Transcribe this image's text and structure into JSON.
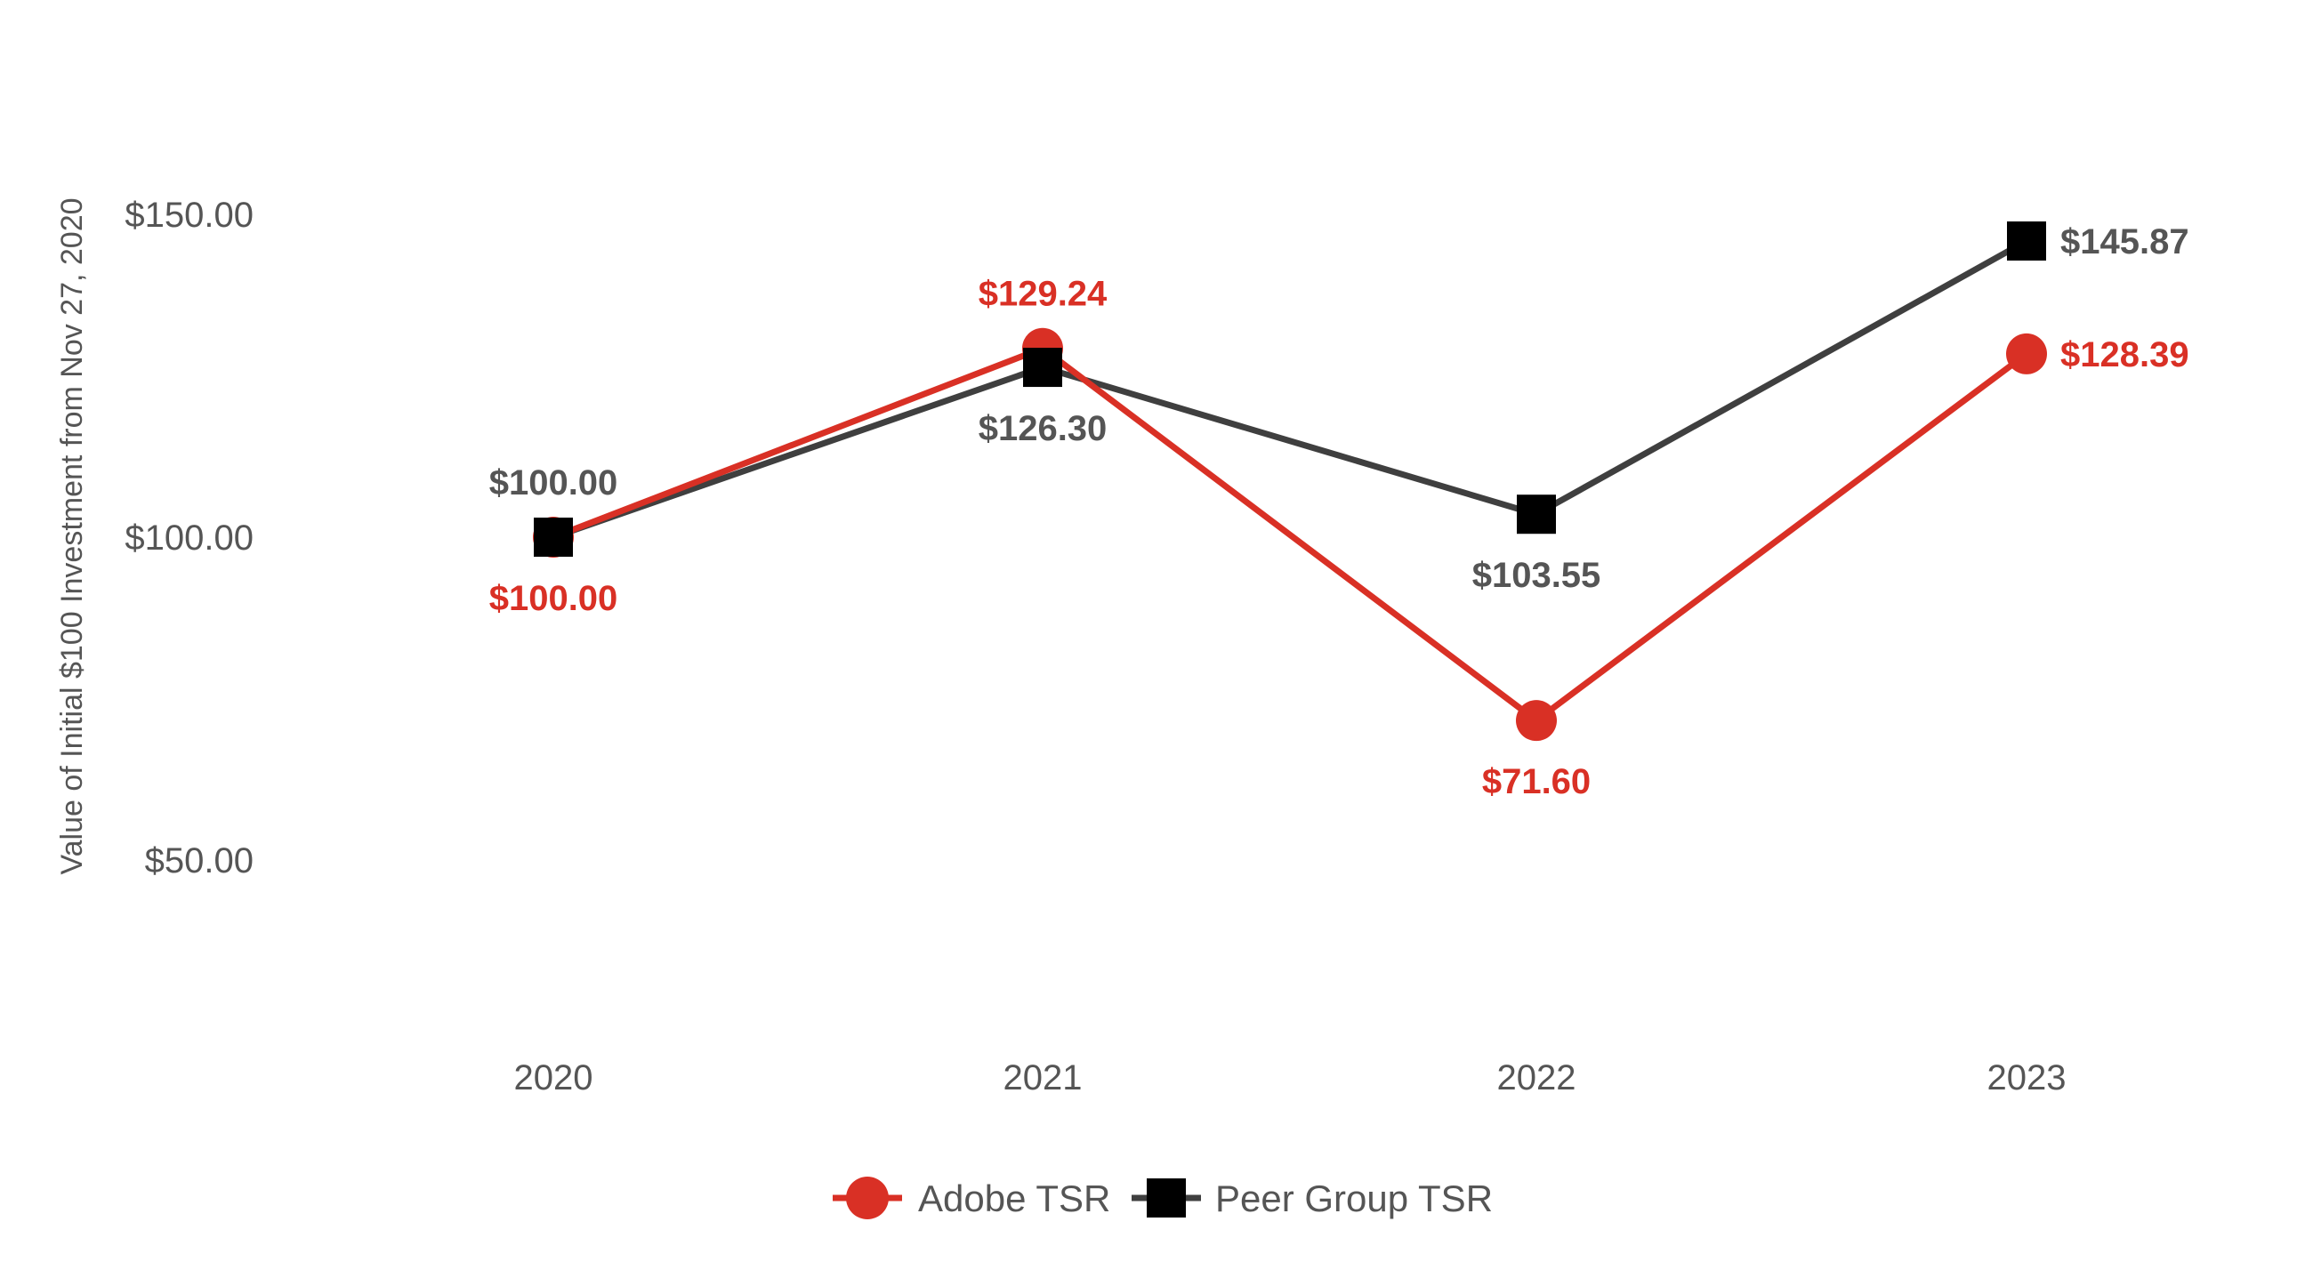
{
  "chart_data": {
    "type": "line",
    "title": "",
    "xlabel": "",
    "ylabel": "Value of Initial $100 Investment from Nov 27, 2020",
    "categories": [
      "2020",
      "2021",
      "2022",
      "2023"
    ],
    "ylim": [
      25,
      175
    ],
    "yticks": [
      50,
      100,
      150
    ],
    "ytick_labels": [
      "$50.00",
      "$100.00",
      "$150.00"
    ],
    "grid": false,
    "legend_position": "bottom-center",
    "series": [
      {
        "name": "Adobe TSR",
        "marker": "circle",
        "color": "#d93025",
        "label_color": "#d93025",
        "values": [
          100.0,
          129.24,
          71.6,
          128.39
        ],
        "labels": [
          "$100.00",
          "$129.24",
          "$71.60",
          "$128.39"
        ],
        "label_positions": [
          "below",
          "above",
          "below",
          "right"
        ]
      },
      {
        "name": "Peer Group TSR",
        "marker": "square",
        "color": "#3f3f3f",
        "marker_color": "#000000",
        "label_color": "#555555",
        "values": [
          100.0,
          126.3,
          103.55,
          145.87
        ],
        "labels": [
          "$100.00",
          "$126.30",
          "$103.55",
          "$145.87"
        ],
        "label_positions": [
          "above",
          "below",
          "below",
          "right"
        ]
      }
    ]
  }
}
